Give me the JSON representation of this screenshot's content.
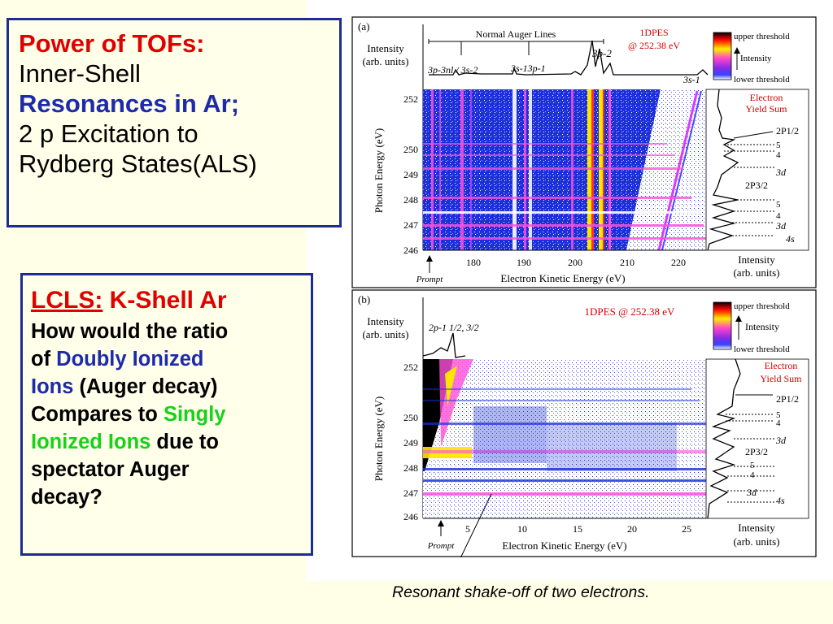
{
  "box1": {
    "title": "Power of TOFs:",
    "line2": "Inner-Shell",
    "line3": "Resonances in Ar;",
    "line4": "2 p Excitation to",
    "line5": "Rydberg States(ALS)"
  },
  "box2": {
    "lcls": "LCLS:",
    "kshell": "K-Shell Ar",
    "l1": "How would the ratio",
    "l2a": "of ",
    "l2b": "Doubly Ionized",
    "l3a": "Ions",
    "l3b": " (Auger decay)",
    "l4a": "Compares to ",
    "l4b": "Singly",
    "l5a": "Ionized Ions",
    "l5b": " due to",
    "l6": "spectator Auger",
    "l7": "decay?"
  },
  "figure": {
    "a": {
      "label": "(a)",
      "intensity_label_1": "Intensity",
      "intensity_label_2": "(arb. units)",
      "auger_lines": "Normal Auger Lines",
      "peak1": "3p-3nl / 3s-2",
      "peak2": "3s-13p-1",
      "peak3": "3p-2",
      "peak4": "3s-1",
      "dpes_1": "1DPES",
      "dpes_2": "@ 252.38 eV",
      "upper_threshold": "upper threshold",
      "intensity_scale": "Intensity",
      "lower_threshold": "lower threshold",
      "eys_1": "Electron",
      "eys_2": "Yield Sum",
      "p12": "2P1/2",
      "p32": "2P3/2",
      "ry5a": "5",
      "ry4a": "4",
      "ry3da": "3d",
      "ry5b": "5",
      "ry4b": "4",
      "ry3db": "3d",
      "ry4s": "4s",
      "ylabel": "Photon Energy (eV)",
      "xlabel": "Electron Kinetic Energy (eV)",
      "prompt": "Prompt",
      "side_xlabel_1": "Intensity",
      "side_xlabel_2": "(arb. units)",
      "yticks": [
        "252",
        "250",
        "249",
        "248",
        "247",
        "246"
      ],
      "xticks": [
        "180",
        "190",
        "200",
        "210",
        "220"
      ]
    },
    "b": {
      "label": "(b)",
      "intensity_label_1": "Intensity",
      "intensity_label_2": "(arb. units)",
      "peak": "2p-1 1/2, 3/2",
      "dpes": "1DPES @  252.38 eV",
      "upper_threshold": "upper threshold",
      "intensity_scale": "Intensity",
      "lower_threshold": "lower threshold",
      "eys_1": "Electron",
      "eys_2": "Yield Sum",
      "p12": "2P1/2",
      "p32": "2P3/2",
      "ry5a": "5",
      "ry4a": "4",
      "ry3da": "3d",
      "ry5b": "5",
      "ry4b": "4",
      "ry3db": "3d",
      "ry4s": "4s",
      "ylabel": "Photon Energy (eV)",
      "xlabel": "Electron Kinetic Energy (eV)",
      "prompt": "Prompt",
      "side_xlabel_1": "Intensity",
      "side_xlabel_2": "(arb. units)",
      "yticks": [
        "252",
        "250",
        "249",
        "248",
        "247",
        "246"
      ],
      "xticks": [
        "5",
        "10",
        "15",
        "20",
        "25"
      ]
    }
  },
  "caption": "Resonant shake-off of two electrons."
}
